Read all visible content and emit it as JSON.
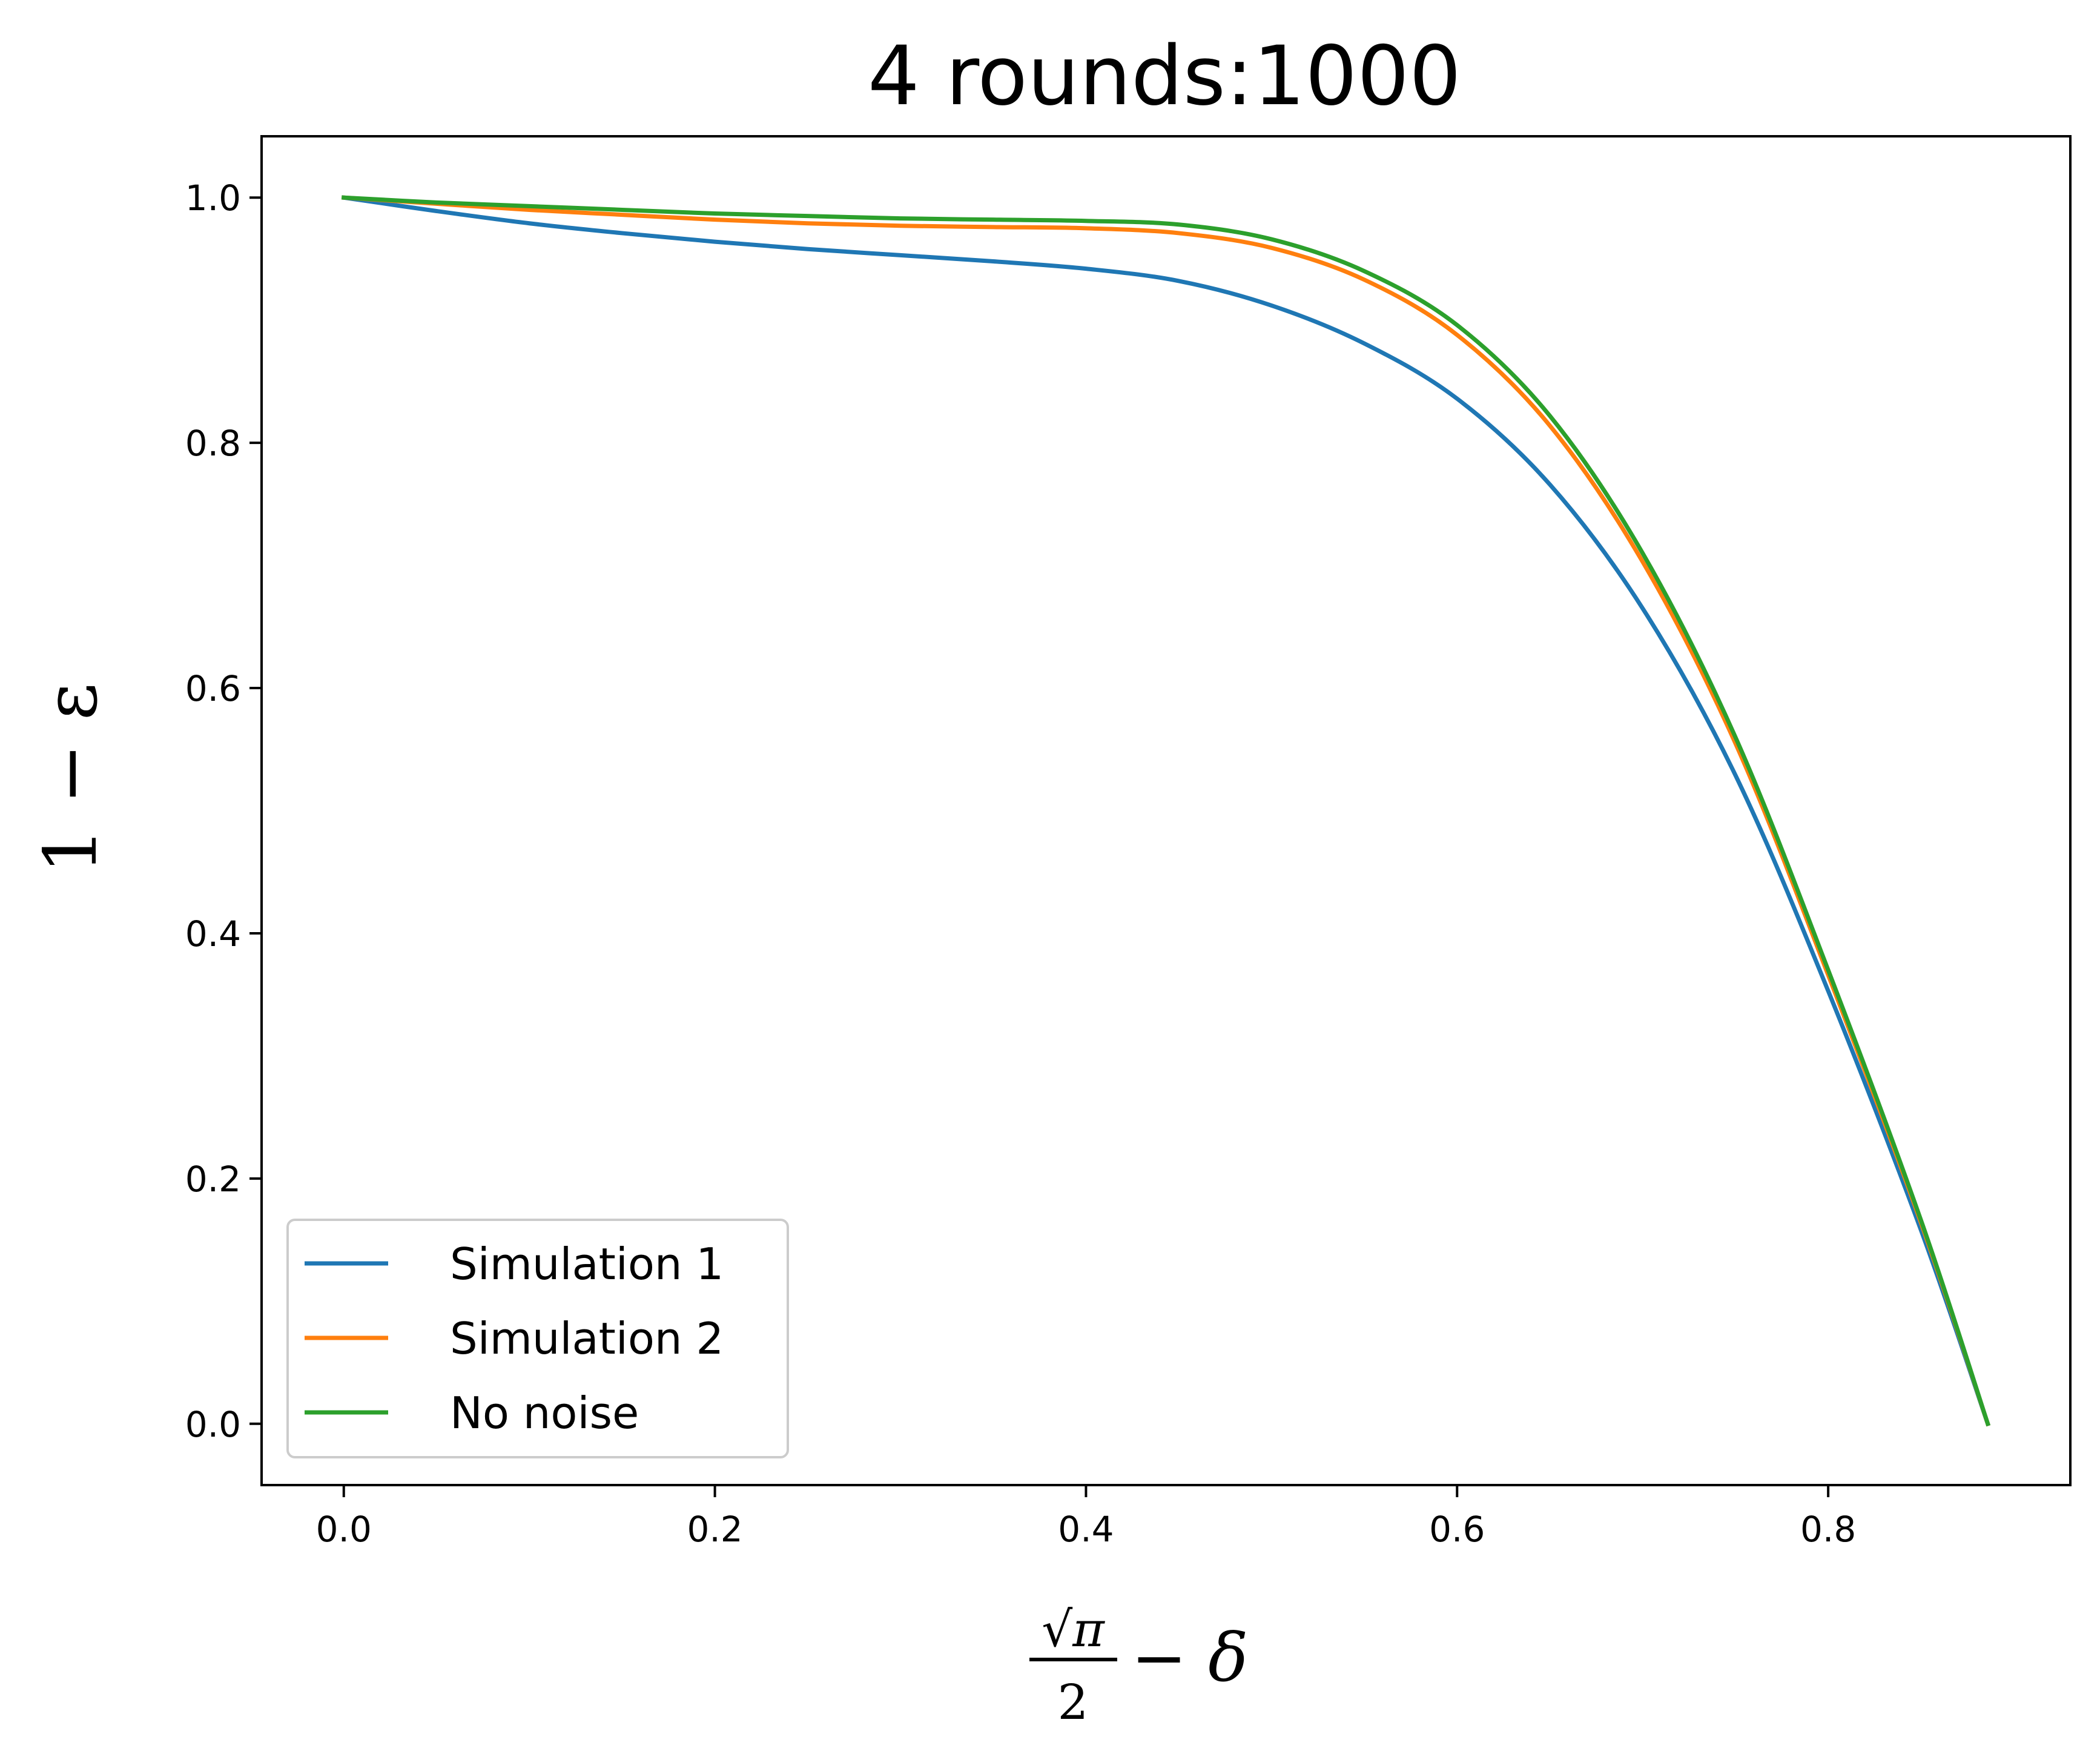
{
  "chart_data": {
    "type": "line",
    "title": "4 rounds:1000",
    "xlabel": {
      "frac_numerator": "√π",
      "frac_denominator": "2",
      "suffix": "− δ"
    },
    "ylabel": "1 − ε",
    "xlim": [
      -0.0443,
      0.9305
    ],
    "ylim": [
      -0.05,
      1.05
    ],
    "xticks": [
      0.0,
      0.2,
      0.4,
      0.6,
      0.8
    ],
    "xtick_labels": [
      "0.0",
      "0.2",
      "0.4",
      "0.6",
      "0.8"
    ],
    "yticks": [
      0.0,
      0.2,
      0.4,
      0.6,
      0.8,
      1.0
    ],
    "ytick_labels": [
      "0.0",
      "0.2",
      "0.4",
      "0.6",
      "0.8",
      "1.0"
    ],
    "grid": false,
    "legend_position": "lower-left",
    "series": [
      {
        "name": "Simulation 1",
        "color": "#1f77b4",
        "x": [
          0.0,
          0.05,
          0.1,
          0.15,
          0.2,
          0.25,
          0.3,
          0.35,
          0.4,
          0.45,
          0.5,
          0.55,
          0.6,
          0.65,
          0.7,
          0.75,
          0.8,
          0.85,
          0.886
        ],
        "y": [
          1.0,
          0.989,
          0.979,
          0.971,
          0.964,
          0.958,
          0.953,
          0.948,
          0.942,
          0.932,
          0.912,
          0.881,
          0.836,
          0.766,
          0.665,
          0.529,
          0.353,
          0.158,
          0.0
        ]
      },
      {
        "name": "Simulation 2",
        "color": "#ff7f0e",
        "x": [
          0.0,
          0.05,
          0.1,
          0.15,
          0.2,
          0.25,
          0.3,
          0.35,
          0.4,
          0.45,
          0.5,
          0.55,
          0.6,
          0.65,
          0.7,
          0.75,
          0.8,
          0.85,
          0.886
        ],
        "y": [
          1.0,
          0.995,
          0.99,
          0.986,
          0.982,
          0.979,
          0.977,
          0.976,
          0.975,
          0.971,
          0.959,
          0.933,
          0.888,
          0.814,
          0.703,
          0.555,
          0.366,
          0.164,
          0.0
        ]
      },
      {
        "name": "No noise",
        "color": "#2ca02c",
        "x": [
          0.0,
          0.05,
          0.1,
          0.15,
          0.2,
          0.25,
          0.3,
          0.35,
          0.4,
          0.45,
          0.5,
          0.55,
          0.6,
          0.65,
          0.7,
          0.75,
          0.8,
          0.85,
          0.886
        ],
        "y": [
          1.0,
          0.996,
          0.993,
          0.99,
          0.987,
          0.985,
          0.983,
          0.982,
          0.981,
          0.978,
          0.966,
          0.94,
          0.896,
          0.822,
          0.71,
          0.56,
          0.37,
          0.166,
          0.0
        ]
      }
    ]
  }
}
